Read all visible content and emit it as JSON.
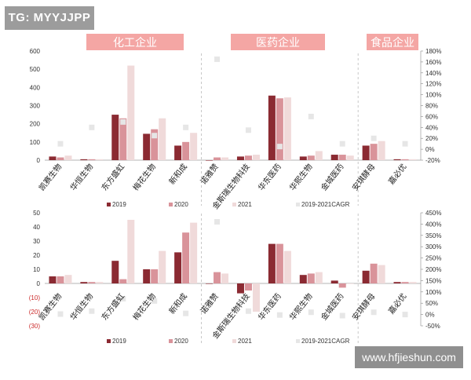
{
  "watermarks": {
    "top": "TG: MYYJJPP",
    "bottom": "www.hfjieshun.com"
  },
  "colors": {
    "y2019": "#8b2a32",
    "y2020": "#d9939a",
    "y2021": "#f0dada",
    "cagr": "#e6e6e6",
    "header_bg": "#f4a6a4",
    "header_text": "#ffffff"
  },
  "legend": [
    "2019",
    "2020",
    "2021",
    "2019-2021CAGR"
  ],
  "sections": [
    {
      "label": "化工企业"
    },
    {
      "label": "医药企业"
    },
    {
      "label": "食品企业"
    }
  ],
  "chart_data": [
    {
      "type": "bar",
      "categories": [
        "凯赛生物",
        "华恒生物",
        "东方盛虹",
        "梅花生物",
        "新和成",
        "诺雅赞",
        "金斯瑞生物科技",
        "华东医药",
        "华熙生物",
        "金城医药",
        "安琪酵母",
        "嘉必优"
      ],
      "series": [
        {
          "name": "2019",
          "values": [
            20,
            5,
            250,
            145,
            80,
            0,
            20,
            355,
            20,
            30,
            80,
            5
          ]
        },
        {
          "name": "2020",
          "values": [
            15,
            5,
            230,
            170,
            100,
            15,
            25,
            340,
            25,
            30,
            90,
            5
          ]
        },
        {
          "name": "2021",
          "values": [
            25,
            5,
            520,
            230,
            150,
            15,
            30,
            345,
            50,
            25,
            105,
            5
          ]
        },
        {
          "name": "2019-2021CAGR",
          "axis": "right",
          "values": [
            0.1,
            0.4,
            0.5,
            0.25,
            0.4,
            1.65,
            0.35,
            0.05,
            0.6,
            0.1,
            0.2,
            0.1
          ]
        }
      ],
      "ylim": [
        0,
        600
      ],
      "y_ticks": [
        "0",
        "100",
        "200",
        "300",
        "400",
        "500",
        "600"
      ],
      "y2lim": [
        -0.2,
        1.8
      ],
      "y2_ticks": [
        "-20%",
        "0%",
        "20%",
        "40%",
        "60%",
        "80%",
        "100%",
        "120%",
        "140%",
        "160%",
        "180%"
      ]
    },
    {
      "type": "bar",
      "categories": [
        "凯赛生物",
        "华恒生物",
        "东方盛虹",
        "梅花生物",
        "新和成",
        "诺雅赞",
        "金斯瑞生物科技",
        "华东医药",
        "华熙生物",
        "金城医药",
        "安琪酵母",
        "嘉必优"
      ],
      "series": [
        {
          "name": "2019",
          "values": [
            5,
            1,
            16,
            10,
            22,
            0,
            -7,
            28,
            6,
            2,
            9,
            1
          ]
        },
        {
          "name": "2020",
          "values": [
            5,
            1,
            3,
            10,
            36,
            8,
            -5,
            28,
            7,
            -3,
            14,
            1
          ]
        },
        {
          "name": "2021",
          "values": [
            6,
            1,
            45,
            23,
            43,
            7,
            -20,
            23,
            8,
            0,
            13,
            1
          ]
        },
        {
          "name": "2019-2021CAGR",
          "axis": "right",
          "values": [
            0.02,
            0.15,
            0.7,
            0.6,
            0.05,
            4.1,
            0.15,
            -0.02,
            0.1,
            -0.05,
            0.1,
            0.0
          ]
        }
      ],
      "ylim": [
        -30,
        50
      ],
      "y_ticks": [
        "(30)",
        "(20)",
        "(10)",
        "0",
        "10",
        "20",
        "30",
        "40",
        "50"
      ],
      "y2lim": [
        -0.5,
        4.5
      ],
      "y2_ticks": [
        "-50%",
        "0%",
        "50%",
        "100%",
        "150%",
        "200%",
        "250%",
        "300%",
        "350%",
        "400%",
        "450%"
      ]
    }
  ]
}
